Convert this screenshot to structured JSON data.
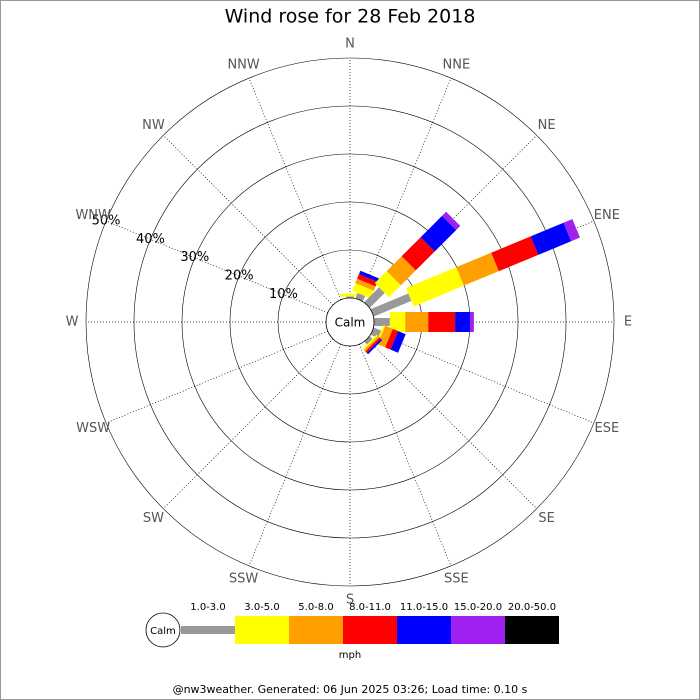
{
  "chart_data": {
    "type": "windrose",
    "title": "Wind rose for 28 Feb 2018",
    "directions": [
      "N",
      "NNE",
      "NE",
      "ENE",
      "E",
      "ESE",
      "SE",
      "SSE",
      "S",
      "SSW",
      "SW",
      "WSW",
      "W",
      "WNW",
      "NW",
      "NNW"
    ],
    "calm_label": "Calm",
    "rlim": [
      0,
      50
    ],
    "rticks": [
      {
        "value": 10,
        "label": "10%"
      },
      {
        "value": 20,
        "label": "20%"
      },
      {
        "value": 30,
        "label": "30%"
      },
      {
        "value": 40,
        "label": "40%"
      },
      {
        "value": 50,
        "label": "50%"
      }
    ],
    "units": "mph",
    "series": [
      {
        "name": "1.0-3.0",
        "color": "#999999",
        "values": [
          0.3,
          1.2,
          4.4,
          8.5,
          3.3,
          1.7,
          0.8,
          0,
          0,
          0,
          0,
          0,
          0,
          0,
          0,
          0
        ]
      },
      {
        "name": "3.0-5.0",
        "color": "#ffff00",
        "values": [
          0.6,
          1.7,
          3.5,
          11.3,
          3.2,
          0.4,
          0.4,
          0,
          0,
          0,
          0,
          0,
          0,
          0,
          0,
          0
        ]
      },
      {
        "name": "5.0-8.0",
        "color": "#ffa000",
        "values": [
          0,
          1.0,
          4.4,
          7.9,
          4.8,
          1.7,
          0.4,
          0,
          0,
          0,
          0,
          0,
          0,
          0,
          0,
          0
        ]
      },
      {
        "name": "8.0-11.0",
        "color": "#ff0000",
        "values": [
          0,
          1.0,
          5.6,
          8.9,
          5.6,
          1.2,
          0.4,
          0,
          0,
          0,
          0,
          0,
          0,
          0,
          0,
          0
        ]
      },
      {
        "name": "11.0-15.0",
        "color": "#0000ff",
        "values": [
          0,
          0.8,
          6.3,
          7.4,
          3.1,
          1.7,
          0.4,
          0,
          0,
          0,
          0,
          0,
          0,
          0,
          0,
          0
        ]
      },
      {
        "name": "15.0-20.0",
        "color": "#a020f0",
        "values": [
          0,
          0,
          1.2,
          2.0,
          0.8,
          0,
          0,
          0,
          0,
          0,
          0,
          0,
          0,
          0,
          0,
          0
        ]
      },
      {
        "name": "20.0-50.0",
        "color": "#000000",
        "values": [
          0,
          0,
          0,
          0,
          0,
          0,
          0,
          0,
          0,
          0,
          0,
          0,
          0,
          0,
          0,
          0
        ]
      }
    ],
    "footer": "@nw3weather. Generated: 06 Jun 2025 03:26; Load time: 0.10 s"
  }
}
